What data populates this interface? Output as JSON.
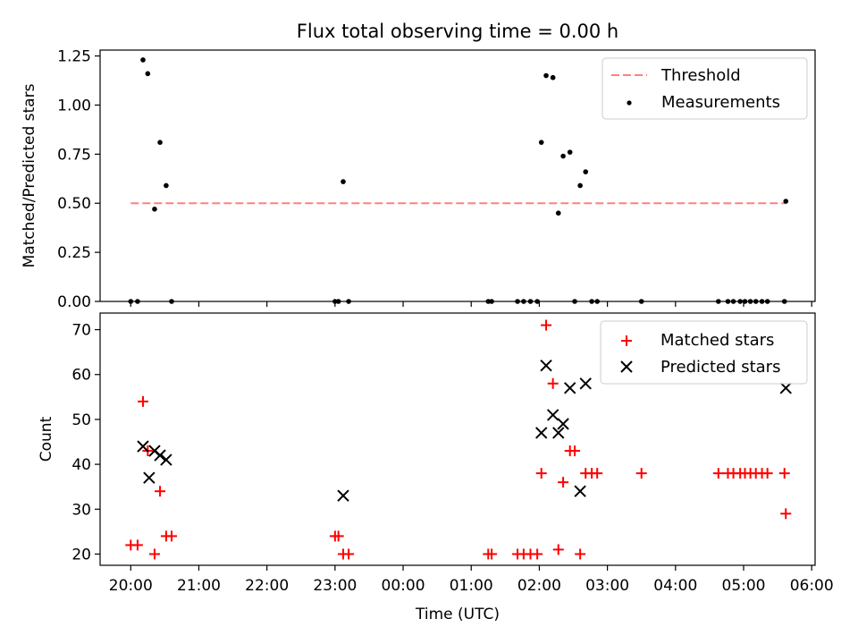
{
  "figure": {
    "title": "Flux total observing time = 0.00 h"
  },
  "chart_data": [
    {
      "type": "scatter",
      "ylabel": "Matched/Predicted stars",
      "xlabel": "",
      "ylim": [
        0,
        1.28
      ],
      "yticks": [
        0.0,
        0.25,
        0.5,
        0.75,
        1.0,
        1.25
      ],
      "ytick_labels": [
        "0.00",
        "0.25",
        "0.50",
        "0.75",
        "1.00",
        "1.25"
      ],
      "xlim_hours": [
        19.55,
        30.05
      ],
      "legend": {
        "position": "top-right",
        "threshold_label": "Threshold",
        "measurements_label": "Measurements"
      },
      "threshold": {
        "value": 0.5,
        "x_range": [
          20.0,
          29.62
        ],
        "color": "#ff8080"
      },
      "measurements": {
        "color": "#000000",
        "x": [
          20.0,
          20.1,
          20.18,
          20.25,
          20.35,
          20.43,
          20.52,
          20.6,
          23.0,
          23.05,
          23.12,
          23.2,
          25.25,
          25.3,
          25.68,
          25.77,
          25.87,
          25.97,
          26.03,
          26.1,
          26.2,
          26.28,
          26.35,
          26.45,
          26.52,
          26.6,
          26.68,
          26.77,
          26.85,
          27.5,
          28.63,
          28.77,
          28.85,
          28.95,
          29.02,
          29.1,
          29.18,
          29.27,
          29.35,
          29.6,
          29.62
        ],
        "y": [
          0.0,
          0.0,
          1.23,
          1.16,
          0.47,
          0.81,
          0.59,
          0.0,
          0.0,
          0.0,
          0.61,
          0.0,
          0.0,
          0.0,
          0.0,
          0.0,
          0.0,
          0.0,
          0.81,
          1.15,
          1.14,
          0.45,
          0.74,
          0.76,
          0.0,
          0.59,
          0.66,
          0.0,
          0.0,
          0.0,
          0.0,
          0.0,
          0.0,
          0.0,
          0.0,
          0.0,
          0.0,
          0.0,
          0.0,
          0.0,
          0.51
        ]
      }
    },
    {
      "type": "scatter",
      "ylabel": "Count",
      "xlabel": "Time (UTC)",
      "ylim": [
        17.5,
        73.7
      ],
      "yticks": [
        20,
        30,
        40,
        50,
        60,
        70
      ],
      "ytick_labels": [
        "20",
        "30",
        "40",
        "50",
        "60",
        "70"
      ],
      "xlim_hours": [
        19.55,
        30.05
      ],
      "xticks_hours": [
        20,
        21,
        22,
        23,
        24,
        25,
        26,
        27,
        28,
        29,
        30
      ],
      "xtick_labels": [
        "20:00",
        "21:00",
        "22:00",
        "23:00",
        "00:00",
        "01:00",
        "02:00",
        "03:00",
        "04:00",
        "05:00",
        "06:00"
      ],
      "legend": {
        "position": "top-right"
      },
      "series": [
        {
          "name": "Matched stars",
          "marker": "+",
          "color": "#ff0000",
          "x": [
            20.0,
            20.1,
            20.18,
            20.25,
            20.35,
            20.43,
            20.52,
            20.6,
            23.0,
            23.05,
            23.12,
            23.2,
            25.25,
            25.3,
            25.68,
            25.77,
            25.87,
            25.97,
            26.03,
            26.1,
            26.2,
            26.28,
            26.35,
            26.45,
            26.52,
            26.6,
            26.68,
            26.77,
            26.85,
            27.5,
            28.63,
            28.77,
            28.85,
            28.95,
            29.02,
            29.1,
            29.18,
            29.27,
            29.35,
            29.6,
            29.62
          ],
          "y": [
            22,
            22,
            54,
            43,
            20,
            34,
            24,
            24,
            24,
            24,
            20,
            20,
            20,
            20,
            20,
            20,
            20,
            20,
            38,
            71,
            58,
            21,
            36,
            43,
            43,
            20,
            38,
            38,
            38,
            38,
            38,
            38,
            38,
            38,
            38,
            38,
            38,
            38,
            38,
            38,
            29
          ]
        },
        {
          "name": "Predicted stars",
          "marker": "x",
          "color": "#000000",
          "x": [
            20.18,
            20.27,
            20.35,
            20.43,
            20.52,
            23.12,
            26.03,
            26.1,
            26.2,
            26.28,
            26.35,
            26.45,
            26.6,
            26.68,
            29.62
          ],
          "y": [
            44,
            37,
            43,
            42,
            41,
            33,
            47,
            62,
            51,
            47,
            49,
            57,
            34,
            58,
            57
          ]
        }
      ]
    }
  ]
}
